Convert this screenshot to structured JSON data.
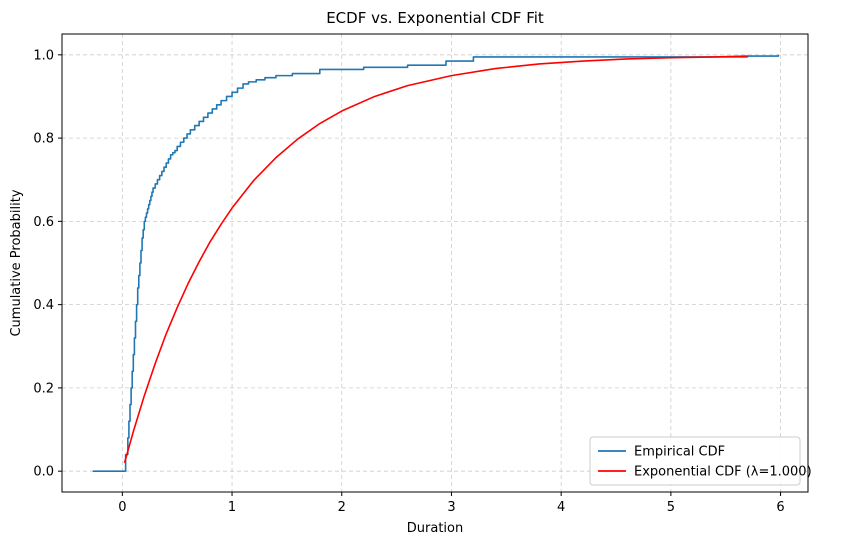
{
  "chart_data": {
    "type": "line",
    "title": "ECDF vs. Exponential CDF Fit",
    "xlabel": "Duration",
    "ylabel": "Cumulative Probability",
    "xlim": [
      -0.55,
      6.25
    ],
    "ylim": [
      -0.05,
      1.05
    ],
    "xticks": [
      0,
      1,
      2,
      3,
      4,
      5,
      6
    ],
    "yticks": [
      0.0,
      0.2,
      0.4,
      0.6,
      0.8,
      1.0
    ],
    "xtick_labels": [
      "0",
      "1",
      "2",
      "3",
      "4",
      "5",
      "6"
    ],
    "ytick_labels": [
      "0.0",
      "0.2",
      "0.4",
      "0.6",
      "0.8",
      "1.0"
    ],
    "grid": true,
    "legend_position": "bottom-right",
    "series": [
      {
        "name": "Empirical CDF",
        "color": "#1f77b4",
        "style": "step",
        "x": [
          -0.27,
          0.02,
          0.03,
          0.05,
          0.06,
          0.07,
          0.08,
          0.09,
          0.1,
          0.11,
          0.12,
          0.13,
          0.14,
          0.15,
          0.16,
          0.17,
          0.18,
          0.19,
          0.2,
          0.21,
          0.22,
          0.23,
          0.24,
          0.25,
          0.26,
          0.27,
          0.28,
          0.3,
          0.32,
          0.34,
          0.36,
          0.38,
          0.4,
          0.42,
          0.44,
          0.46,
          0.48,
          0.5,
          0.53,
          0.56,
          0.59,
          0.62,
          0.66,
          0.7,
          0.74,
          0.78,
          0.82,
          0.86,
          0.9,
          0.95,
          1.0,
          1.05,
          1.1,
          1.15,
          1.22,
          1.3,
          1.4,
          1.55,
          1.8,
          2.2,
          2.6,
          2.95,
          3.2,
          5.7,
          5.98
        ],
        "y": [
          0.0,
          0.0,
          0.04,
          0.08,
          0.12,
          0.16,
          0.2,
          0.24,
          0.28,
          0.32,
          0.36,
          0.4,
          0.44,
          0.47,
          0.5,
          0.53,
          0.56,
          0.58,
          0.6,
          0.61,
          0.62,
          0.63,
          0.64,
          0.65,
          0.66,
          0.67,
          0.68,
          0.69,
          0.7,
          0.71,
          0.72,
          0.73,
          0.74,
          0.75,
          0.76,
          0.765,
          0.77,
          0.78,
          0.79,
          0.8,
          0.81,
          0.82,
          0.83,
          0.84,
          0.85,
          0.86,
          0.87,
          0.88,
          0.89,
          0.9,
          0.91,
          0.92,
          0.93,
          0.935,
          0.94,
          0.945,
          0.95,
          0.955,
          0.965,
          0.97,
          0.975,
          0.985,
          0.995,
          0.997,
          1.0
        ]
      },
      {
        "name": "Exponential CDF (λ=1.000)",
        "color": "#ff0000",
        "style": "line",
        "lambda": 1.0,
        "x": [
          0.02,
          0.1,
          0.2,
          0.3,
          0.4,
          0.5,
          0.6,
          0.7,
          0.8,
          0.9,
          1.0,
          1.2,
          1.4,
          1.6,
          1.8,
          2.0,
          2.3,
          2.6,
          3.0,
          3.4,
          3.8,
          4.2,
          4.6,
          5.0,
          5.4,
          5.7
        ],
        "y": [
          0.02,
          0.095,
          0.181,
          0.259,
          0.33,
          0.393,
          0.451,
          0.503,
          0.551,
          0.593,
          0.632,
          0.699,
          0.753,
          0.798,
          0.835,
          0.865,
          0.9,
          0.926,
          0.95,
          0.967,
          0.978,
          0.985,
          0.99,
          0.993,
          0.995,
          0.997
        ]
      }
    ]
  }
}
